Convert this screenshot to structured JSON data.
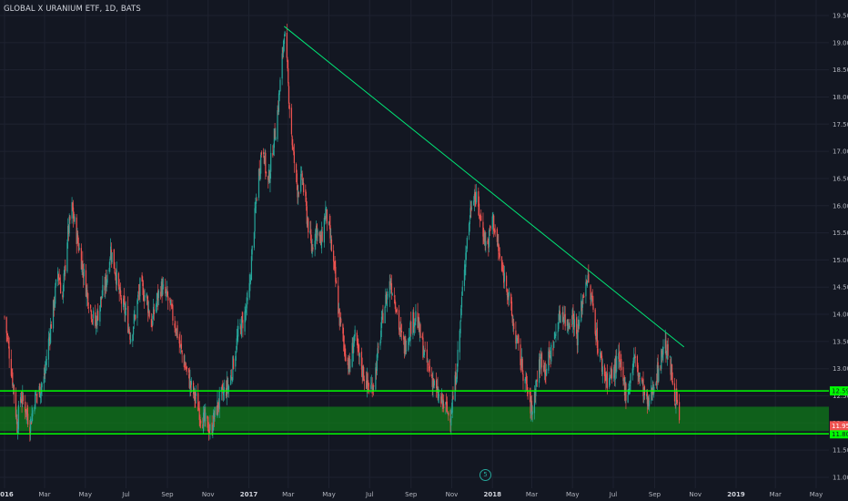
{
  "header": {
    "symbol_title": "GLOBAL X URANIUM ETF, 1D, BATS"
  },
  "marker": {
    "label": "5"
  },
  "colors": {
    "background": "#131722",
    "grid": "#1e2230",
    "axis_text": "#b2b5be",
    "up": "#26a69a",
    "down": "#ef5350",
    "trendline": "#00e676",
    "zone_fill": "#1b5e20",
    "line_green": "#00ff00"
  },
  "chart_data": {
    "type": "candlestick",
    "y_axis": {
      "ylim": [
        10.8,
        19.7
      ],
      "ticks": [
        "11.00",
        "11.50",
        "12.00",
        "12.50",
        "13.00",
        "13.50",
        "14.00",
        "14.50",
        "15.00",
        "15.50",
        "16.00",
        "16.50",
        "17.00",
        "17.50",
        "18.00",
        "18.50",
        "19.00",
        "19.50"
      ]
    },
    "x_axis": {
      "xlim": [
        "2015-12-31",
        "2019-06-05"
      ],
      "ticks": [
        {
          "label": "2016",
          "date": "2016-01-01"
        },
        {
          "label": "Mar",
          "date": "2016-03-01"
        },
        {
          "label": "May",
          "date": "2016-05-01"
        },
        {
          "label": "Jul",
          "date": "2016-07-01"
        },
        {
          "label": "Sep",
          "date": "2016-09-01"
        },
        {
          "label": "Nov",
          "date": "2016-11-01"
        },
        {
          "label": "2017",
          "date": "2017-01-01"
        },
        {
          "label": "Mar",
          "date": "2017-03-01"
        },
        {
          "label": "May",
          "date": "2017-05-01"
        },
        {
          "label": "Jul",
          "date": "2017-07-01"
        },
        {
          "label": "Sep",
          "date": "2017-09-01"
        },
        {
          "label": "Nov",
          "date": "2017-11-01"
        },
        {
          "label": "2018",
          "date": "2018-01-01"
        },
        {
          "label": "Mar",
          "date": "2018-03-01"
        },
        {
          "label": "May",
          "date": "2018-05-01"
        },
        {
          "label": "Jul",
          "date": "2018-07-01"
        },
        {
          "label": "Sep",
          "date": "2018-09-01"
        },
        {
          "label": "Nov",
          "date": "2018-11-01"
        },
        {
          "label": "2019",
          "date": "2019-01-01"
        },
        {
          "label": "Mar",
          "date": "2019-03-01"
        },
        {
          "label": "May",
          "date": "2019-05-01"
        }
      ]
    },
    "price_path": [
      [
        "2016-01-01",
        13.95
      ],
      [
        "2016-01-07",
        13.4
      ],
      [
        "2016-01-14",
        12.7
      ],
      [
        "2016-01-20",
        11.95
      ],
      [
        "2016-01-25",
        12.5
      ],
      [
        "2016-02-01",
        12.3
      ],
      [
        "2016-02-08",
        11.95
      ],
      [
        "2016-02-15",
        12.45
      ],
      [
        "2016-02-22",
        12.6
      ],
      [
        "2016-02-29",
        12.8
      ],
      [
        "2016-03-07",
        13.5
      ],
      [
        "2016-03-14",
        14.1
      ],
      [
        "2016-03-21",
        14.8
      ],
      [
        "2016-03-28",
        14.3
      ],
      [
        "2016-04-04",
        15.4
      ],
      [
        "2016-04-11",
        15.95
      ],
      [
        "2016-04-18",
        15.45
      ],
      [
        "2016-04-25",
        15.0
      ],
      [
        "2016-05-02",
        14.5
      ],
      [
        "2016-05-09",
        14.1
      ],
      [
        "2016-05-16",
        13.8
      ],
      [
        "2016-05-23",
        14.2
      ],
      [
        "2016-06-01",
        14.6
      ],
      [
        "2016-06-08",
        15.2
      ],
      [
        "2016-06-15",
        14.8
      ],
      [
        "2016-06-22",
        14.3
      ],
      [
        "2016-07-01",
        14.0
      ],
      [
        "2016-07-08",
        13.6
      ],
      [
        "2016-07-15",
        14.0
      ],
      [
        "2016-07-22",
        14.5
      ],
      [
        "2016-08-01",
        14.3
      ],
      [
        "2016-08-08",
        13.8
      ],
      [
        "2016-08-15",
        14.2
      ],
      [
        "2016-08-22",
        14.5
      ],
      [
        "2016-09-01",
        14.3
      ],
      [
        "2016-09-08",
        14.0
      ],
      [
        "2016-09-15",
        13.7
      ],
      [
        "2016-09-22",
        13.3
      ],
      [
        "2016-10-01",
        12.9
      ],
      [
        "2016-10-08",
        12.6
      ],
      [
        "2016-10-15",
        12.4
      ],
      [
        "2016-10-22",
        12.1
      ],
      [
        "2016-10-29",
        12.0
      ],
      [
        "2016-11-05",
        11.85
      ],
      [
        "2016-11-12",
        12.2
      ],
      [
        "2016-11-19",
        12.45
      ],
      [
        "2016-11-26",
        12.6
      ],
      [
        "2016-12-03",
        12.7
      ],
      [
        "2016-12-10",
        13.2
      ],
      [
        "2016-12-17",
        13.7
      ],
      [
        "2016-12-24",
        13.9
      ],
      [
        "2017-01-01",
        14.3
      ],
      [
        "2017-01-08",
        15.5
      ],
      [
        "2017-01-15",
        16.5
      ],
      [
        "2017-01-22",
        17.2
      ],
      [
        "2017-01-29",
        16.3
      ],
      [
        "2017-02-05",
        17.0
      ],
      [
        "2017-02-12",
        17.6
      ],
      [
        "2017-02-19",
        18.5
      ],
      [
        "2017-02-23",
        19.25
      ],
      [
        "2017-03-01",
        18.2
      ],
      [
        "2017-03-08",
        17.0
      ],
      [
        "2017-03-15",
        16.3
      ],
      [
        "2017-03-22",
        16.5
      ],
      [
        "2017-03-29",
        15.8
      ],
      [
        "2017-04-05",
        15.2
      ],
      [
        "2017-04-12",
        15.6
      ],
      [
        "2017-04-19",
        15.3
      ],
      [
        "2017-04-26",
        15.9
      ],
      [
        "2017-05-03",
        15.4
      ],
      [
        "2017-05-10",
        14.7
      ],
      [
        "2017-05-17",
        13.9
      ],
      [
        "2017-05-24",
        13.4
      ],
      [
        "2017-06-01",
        13.0
      ],
      [
        "2017-06-08",
        13.6
      ],
      [
        "2017-06-15",
        13.2
      ],
      [
        "2017-06-22",
        12.9
      ],
      [
        "2017-07-01",
        12.6
      ],
      [
        "2017-07-08",
        12.8
      ],
      [
        "2017-07-15",
        13.4
      ],
      [
        "2017-07-22",
        14.1
      ],
      [
        "2017-08-01",
        14.6
      ],
      [
        "2017-08-08",
        14.3
      ],
      [
        "2017-08-15",
        13.7
      ],
      [
        "2017-08-22",
        13.4
      ],
      [
        "2017-09-01",
        13.8
      ],
      [
        "2017-09-08",
        14.0
      ],
      [
        "2017-09-15",
        13.6
      ],
      [
        "2017-09-22",
        13.2
      ],
      [
        "2017-10-01",
        12.9
      ],
      [
        "2017-10-08",
        12.6
      ],
      [
        "2017-10-15",
        12.4
      ],
      [
        "2017-10-22",
        12.3
      ],
      [
        "2017-10-29",
        12.1
      ],
      [
        "2017-11-05",
        12.6
      ],
      [
        "2017-11-12",
        13.5
      ],
      [
        "2017-11-19",
        14.8
      ],
      [
        "2017-11-26",
        15.6
      ],
      [
        "2017-12-03",
        16.3
      ],
      [
        "2017-12-10",
        16.0
      ],
      [
        "2017-12-17",
        15.6
      ],
      [
        "2017-12-24",
        15.2
      ],
      [
        "2018-01-01",
        15.8
      ],
      [
        "2018-01-08",
        15.3
      ],
      [
        "2018-01-15",
        14.8
      ],
      [
        "2018-01-22",
        14.6
      ],
      [
        "2018-02-01",
        13.8
      ],
      [
        "2018-02-08",
        13.4
      ],
      [
        "2018-02-15",
        13.0
      ],
      [
        "2018-02-22",
        12.6
      ],
      [
        "2018-03-01",
        12.2
      ],
      [
        "2018-03-08",
        12.8
      ],
      [
        "2018-03-15",
        13.2
      ],
      [
        "2018-03-22",
        13.0
      ],
      [
        "2018-04-01",
        13.4
      ],
      [
        "2018-04-08",
        13.8
      ],
      [
        "2018-04-15",
        14.1
      ],
      [
        "2018-04-22",
        13.8
      ],
      [
        "2018-05-01",
        14.0
      ],
      [
        "2018-05-08",
        13.6
      ],
      [
        "2018-05-15",
        14.2
      ],
      [
        "2018-05-22",
        14.7
      ],
      [
        "2018-06-01",
        14.1
      ],
      [
        "2018-06-08",
        13.4
      ],
      [
        "2018-06-15",
        13.0
      ],
      [
        "2018-06-22",
        12.8
      ],
      [
        "2018-07-01",
        12.9
      ],
      [
        "2018-07-08",
        13.2
      ],
      [
        "2018-07-15",
        12.8
      ],
      [
        "2018-07-22",
        12.5
      ],
      [
        "2018-08-01",
        13.2
      ],
      [
        "2018-08-08",
        12.9
      ],
      [
        "2018-08-15",
        12.6
      ],
      [
        "2018-08-22",
        12.3
      ],
      [
        "2018-09-01",
        12.8
      ],
      [
        "2018-09-08",
        13.0
      ],
      [
        "2018-09-15",
        13.5
      ],
      [
        "2018-09-22",
        13.2
      ],
      [
        "2018-09-29",
        12.7
      ],
      [
        "2018-10-05",
        12.3
      ],
      [
        "2018-10-08",
        11.95
      ]
    ],
    "trendline": {
      "from": [
        "2017-02-23",
        19.3
      ],
      "to": [
        "2018-10-15",
        13.4
      ]
    },
    "support_zone": {
      "low": 11.85,
      "high": 12.3
    },
    "horizontal_lines": [
      {
        "value": 12.59,
        "label": "12.59"
      },
      {
        "value": 11.8,
        "label": "11.80"
      }
    ],
    "last_price_label": "11.95",
    "grid": true,
    "legend": "none"
  }
}
